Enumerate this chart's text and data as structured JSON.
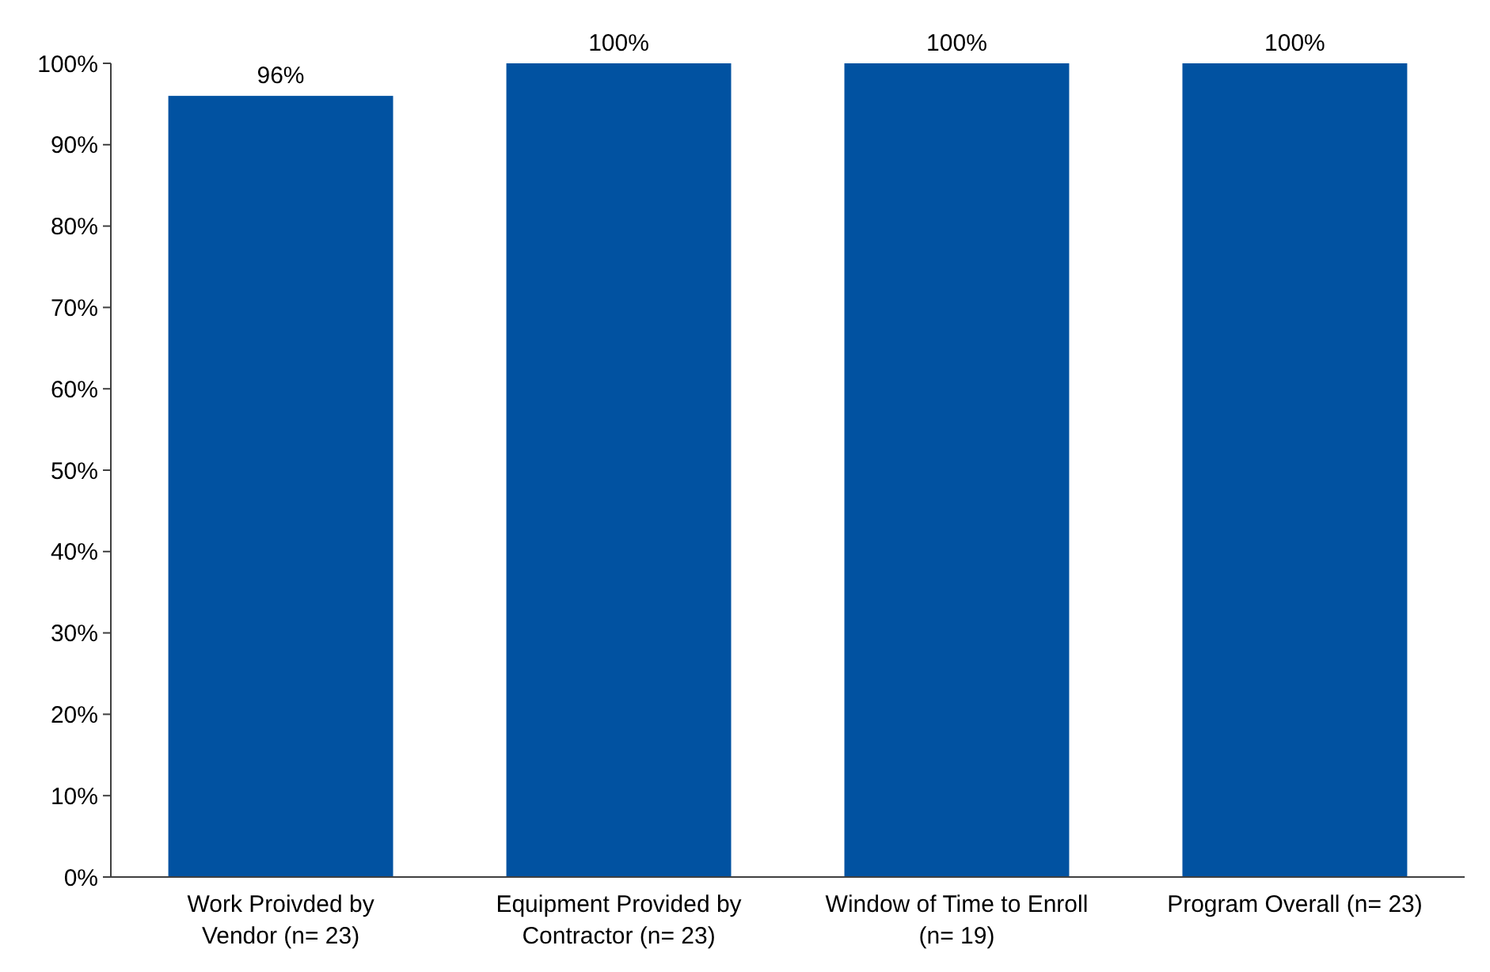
{
  "chart_data": {
    "type": "bar",
    "categories": [
      "Work Proivded by Vendor (n= 23)",
      "Equipment Provided by Contractor (n= 23)",
      "Window of Time to Enroll (n= 19)",
      "Program Overall (n= 23)"
    ],
    "values": [
      96,
      100,
      100,
      100
    ],
    "value_labels": [
      "96%",
      "100%",
      "100%",
      "100%"
    ],
    "color": "#0152a1",
    "ylim": [
      0,
      100
    ],
    "yticks": [
      {
        "value": 0,
        "label": "0%"
      },
      {
        "value": 10,
        "label": "10%"
      },
      {
        "value": 20,
        "label": "20%"
      },
      {
        "value": 30,
        "label": "30%"
      },
      {
        "value": 40,
        "label": "40%"
      },
      {
        "value": 50,
        "label": "50%"
      },
      {
        "value": 60,
        "label": "60%"
      },
      {
        "value": 70,
        "label": "70%"
      },
      {
        "value": 80,
        "label": "80%"
      },
      {
        "value": 90,
        "label": "90%"
      },
      {
        "value": 100,
        "label": "100%"
      }
    ],
    "grid": false
  }
}
